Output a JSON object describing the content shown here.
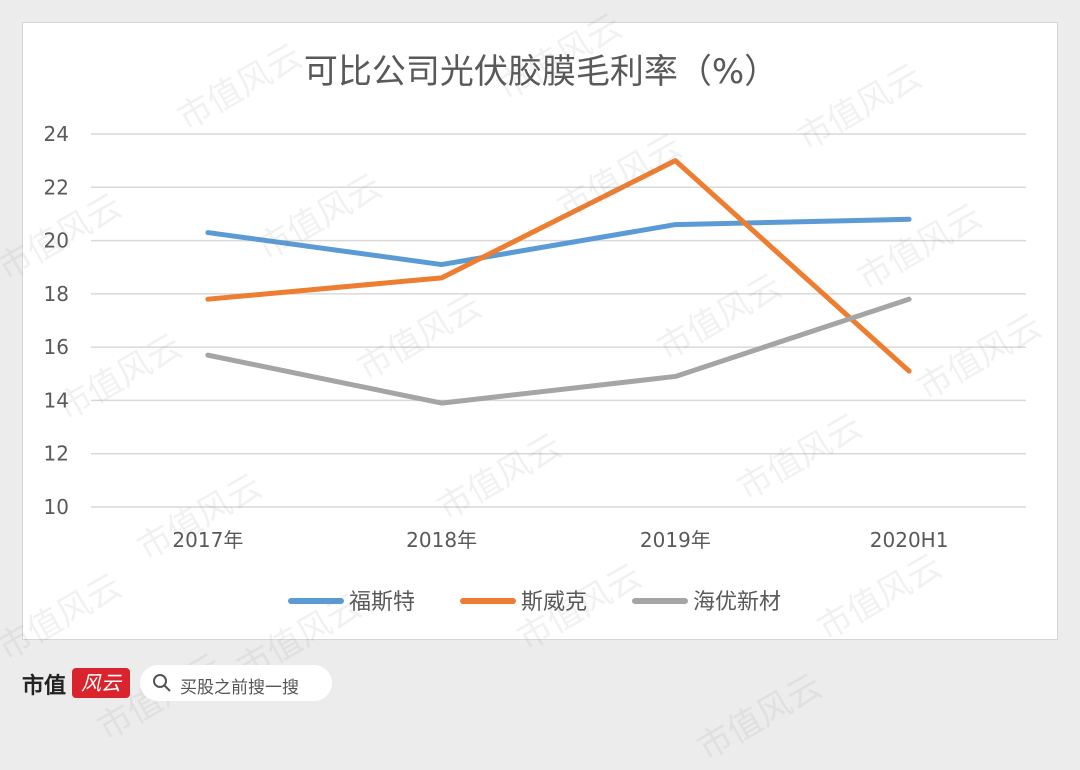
{
  "chart_data": {
    "type": "line",
    "title": "可比公司光伏胶膜毛利率（%）",
    "categories": [
      "2017年",
      "2018年",
      "2019年",
      "2020H1"
    ],
    "ylim": [
      10,
      24
    ],
    "yticks": [
      "10",
      "12",
      "14",
      "16",
      "18",
      "20",
      "22",
      "24"
    ],
    "grid": true,
    "legend_position": "bottom",
    "series": [
      {
        "name": "福斯特",
        "color": "#5b9bd5",
        "values": [
          20.3,
          19.1,
          20.6,
          20.8
        ]
      },
      {
        "name": "斯威克",
        "color": "#ed7d31",
        "values": [
          17.8,
          18.6,
          23.0,
          15.1
        ]
      },
      {
        "name": "海优新材",
        "color": "#a5a5a5",
        "values": [
          15.7,
          13.9,
          14.9,
          17.8
        ]
      }
    ]
  },
  "watermark": "市值风云",
  "footer": {
    "brand": "市值",
    "brand_badge": "风云",
    "search_placeholder": "买股之前搜一搜",
    "search_icon": "search-icon"
  }
}
